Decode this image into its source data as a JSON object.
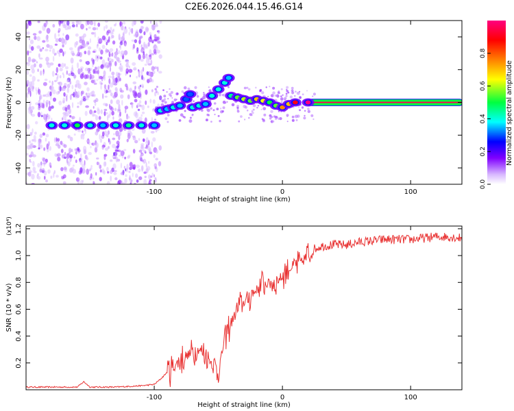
{
  "title": "C2E6.2026.044.15.46.G14",
  "chart_data": [
    {
      "type": "heatmap",
      "name": "spectrogram",
      "xlabel": "Height of straight line (km)",
      "ylabel": "Frequency (Hz)",
      "xlim": [
        -200,
        140
      ],
      "ylim": [
        -50,
        50
      ],
      "xticks": [
        -100,
        0,
        100
      ],
      "xtick_labels": [
        "-100",
        "0",
        "100"
      ],
      "yticks": [
        -40,
        -20,
        0,
        20,
        40
      ],
      "ytick_labels": [
        "-40",
        "-20",
        "0",
        "20",
        "40"
      ],
      "colorbar": {
        "label": "Normalized spectral amplitude",
        "range": [
          0,
          1
        ],
        "ticks": [
          0.0,
          0.2,
          0.4,
          0.6,
          0.8
        ],
        "tick_labels": [
          "0.0",
          "0.2",
          "0.4",
          "0.6",
          "0.8"
        ],
        "colors": [
          "#ffffff",
          "#c8a0ff",
          "#8000ff",
          "#0000ff",
          "#00ffff",
          "#00ff40",
          "#ffff00",
          "#ff8000",
          "#ff0000",
          "#ff0080"
        ]
      },
      "ridge": {
        "x": [
          -180,
          -170,
          -160,
          -150,
          -140,
          -130,
          -120,
          -110,
          -100,
          -95,
          -90,
          -85,
          -80,
          -75,
          -72,
          -70,
          -65,
          -60,
          -55,
          -50,
          -45,
          -42,
          -40,
          -35,
          -30,
          -25,
          -20,
          -15,
          -10,
          -5,
          0,
          5,
          10,
          20,
          40,
          60,
          80,
          100,
          120,
          140
        ],
        "y": [
          -14,
          -14,
          -14,
          -14,
          -14,
          -14,
          -14,
          -14,
          -14,
          -5,
          -4,
          -3,
          -2,
          2,
          5,
          -3,
          -2,
          -1,
          4,
          8,
          12,
          15,
          4,
          3,
          2,
          1,
          2,
          1,
          0,
          -2,
          -3,
          -1,
          0,
          0,
          0,
          0,
          0,
          0,
          0,
          0
        ],
        "amp": [
          0.4,
          0.4,
          0.5,
          0.4,
          0.35,
          0.4,
          0.45,
          0.4,
          0.35,
          0.4,
          0.35,
          0.4,
          0.35,
          0.3,
          0.3,
          0.4,
          0.4,
          0.35,
          0.4,
          0.4,
          0.4,
          0.35,
          0.45,
          0.55,
          0.6,
          0.55,
          0.7,
          0.65,
          0.5,
          0.55,
          0.75,
          0.7,
          0.9,
          1.0,
          1.0,
          1.0,
          1.0,
          1.0,
          1.0,
          1.0
        ]
      }
    },
    {
      "type": "line",
      "name": "snr",
      "xlabel": "Height of straight line (km)",
      "ylabel": "SNR (10 * v/v)",
      "scale_label": "(x10⁴)",
      "xlim": [
        -200,
        140
      ],
      "ylim": [
        0,
        1.22
      ],
      "xticks": [
        -100,
        0,
        100
      ],
      "xtick_labels": [
        "-100",
        "0",
        "100"
      ],
      "yticks": [
        0.2,
        0.4,
        0.6,
        0.8,
        1.0,
        1.2
      ],
      "ytick_labels": [
        "0.2",
        "0.4",
        "0.6",
        "0.8",
        "1.0",
        "1.2"
      ],
      "color": "#e83030",
      "x": [
        -200,
        -180,
        -160,
        -155,
        -150,
        -130,
        -110,
        -100,
        -95,
        -90,
        -85,
        -80,
        -75,
        -70,
        -65,
        -60,
        -55,
        -50,
        -45,
        -40,
        -35,
        -30,
        -25,
        -20,
        -15,
        -10,
        -5,
        0,
        5,
        10,
        15,
        20,
        25,
        30,
        40,
        50,
        60,
        70,
        80,
        90,
        100,
        110,
        120,
        130,
        140
      ],
      "y": [
        0.02,
        0.02,
        0.02,
        0.06,
        0.02,
        0.02,
        0.03,
        0.04,
        0.08,
        0.13,
        0.17,
        0.22,
        0.25,
        0.28,
        0.3,
        0.26,
        0.2,
        0.13,
        0.38,
        0.5,
        0.6,
        0.65,
        0.7,
        0.75,
        0.78,
        0.8,
        0.8,
        0.85,
        0.9,
        0.92,
        0.95,
        1.0,
        1.05,
        1.07,
        1.08,
        1.08,
        1.1,
        1.11,
        1.12,
        1.12,
        1.12,
        1.13,
        1.14,
        1.14,
        1.13
      ]
    }
  ]
}
